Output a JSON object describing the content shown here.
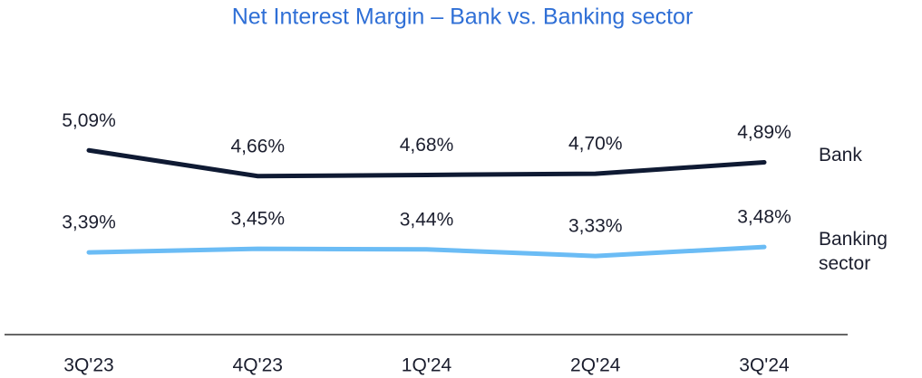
{
  "chart_data": {
    "type": "line",
    "title": "Net Interest Margin – Bank vs. Banking sector",
    "categories": [
      "3Q'23",
      "4Q'23",
      "1Q'24",
      "2Q'24",
      "3Q'24"
    ],
    "series": [
      {
        "name": "Bank",
        "color": "#0f1a33",
        "values": [
          5.09,
          4.66,
          4.68,
          4.7,
          4.89
        ],
        "value_labels": [
          "5,09%",
          "4,66%",
          "4,68%",
          "4,70%",
          "4,89%"
        ]
      },
      {
        "name": "Banking sector",
        "color": "#6bbcf5",
        "values": [
          3.39,
          3.45,
          3.44,
          3.33,
          3.48
        ],
        "value_labels": [
          "3,39%",
          "3,45%",
          "3,44%",
          "3,33%",
          "3,48%"
        ]
      }
    ],
    "ylim": [
      3,
      5.5
    ]
  }
}
